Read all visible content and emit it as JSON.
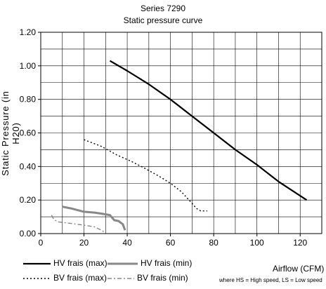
{
  "chart_data": {
    "type": "line",
    "title": "Series 7290",
    "subtitle": "Static pressure curve",
    "xlabel": "Airflow (CFM)",
    "ylabel": "Static Pressure (in H20)",
    "xlim": [
      0,
      130
    ],
    "ylim": [
      0,
      1.2
    ],
    "xticks": [
      "0",
      "20",
      "40",
      "60",
      "80",
      "100",
      "120"
    ],
    "yticks": [
      "0.00",
      "0.20",
      "0.40",
      "0.60",
      "0.80",
      "1.00",
      "1.20"
    ],
    "grid": true,
    "legend_position": "bottom",
    "series": [
      {
        "name": "HV frais (max)",
        "style": "solid",
        "color": "#000000",
        "points": [
          [
            32,
            1.03
          ],
          [
            40,
            0.97
          ],
          [
            50,
            0.89
          ],
          [
            60,
            0.8
          ],
          [
            70,
            0.7
          ],
          [
            80,
            0.6
          ],
          [
            90,
            0.5
          ],
          [
            100,
            0.41
          ],
          [
            110,
            0.31
          ],
          [
            123,
            0.2
          ]
        ]
      },
      {
        "name": "HV frais (min)",
        "style": "solid",
        "color": "#888888",
        "points": [
          [
            10,
            0.16
          ],
          [
            14,
            0.15
          ],
          [
            20,
            0.13
          ],
          [
            25,
            0.125
          ],
          [
            30,
            0.115
          ],
          [
            32,
            0.11
          ],
          [
            34,
            0.08
          ],
          [
            36,
            0.075
          ],
          [
            38,
            0.055
          ],
          [
            39,
            0.02
          ]
        ]
      },
      {
        "name": "BV frais (max)",
        "style": "dotted",
        "color": "#000000",
        "points": [
          [
            20,
            0.56
          ],
          [
            28,
            0.52
          ],
          [
            35,
            0.47
          ],
          [
            42,
            0.43
          ],
          [
            48,
            0.39
          ],
          [
            55,
            0.34
          ],
          [
            60,
            0.3
          ],
          [
            65,
            0.25
          ],
          [
            70,
            0.18
          ],
          [
            72,
            0.15
          ],
          [
            74,
            0.135
          ],
          [
            77,
            0.135
          ]
        ]
      },
      {
        "name": "BV frais (min)",
        "style": "dashdot",
        "color": "#888888",
        "points": [
          [
            5,
            0.11
          ],
          [
            6,
            0.085
          ],
          [
            8,
            0.07
          ],
          [
            14,
            0.06
          ],
          [
            20,
            0.05
          ],
          [
            25,
            0.04
          ],
          [
            28,
            0.02
          ],
          [
            30,
            0.005
          ]
        ]
      }
    ],
    "note": "where HS = High speed, LS = Low speed"
  }
}
